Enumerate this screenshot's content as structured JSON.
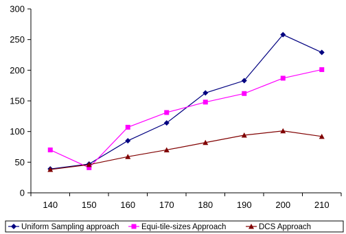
{
  "chart_data": {
    "type": "line",
    "title": "",
    "xlabel": "",
    "ylabel": "",
    "x": [
      140,
      150,
      160,
      170,
      180,
      190,
      200,
      210
    ],
    "ylim": [
      0,
      300
    ],
    "yticks": [
      0,
      50,
      100,
      150,
      200,
      250,
      300
    ],
    "grid": false,
    "legend_position": "bottom",
    "series": [
      {
        "name": "Uniform Sampling approach",
        "color": "#000080",
        "marker": "diamond",
        "values": [
          39,
          47,
          85,
          114,
          163,
          183,
          258,
          229
        ]
      },
      {
        "name": "Equi-tile-sizes Approach",
        "color": "#ff00ff",
        "marker": "square",
        "values": [
          70,
          41,
          107,
          131,
          148,
          162,
          187,
          201
        ]
      },
      {
        "name": "DCS Approach",
        "color": "#800000",
        "marker": "triangle",
        "values": [
          38,
          46,
          59,
          70,
          82,
          94,
          101,
          92
        ]
      }
    ]
  }
}
